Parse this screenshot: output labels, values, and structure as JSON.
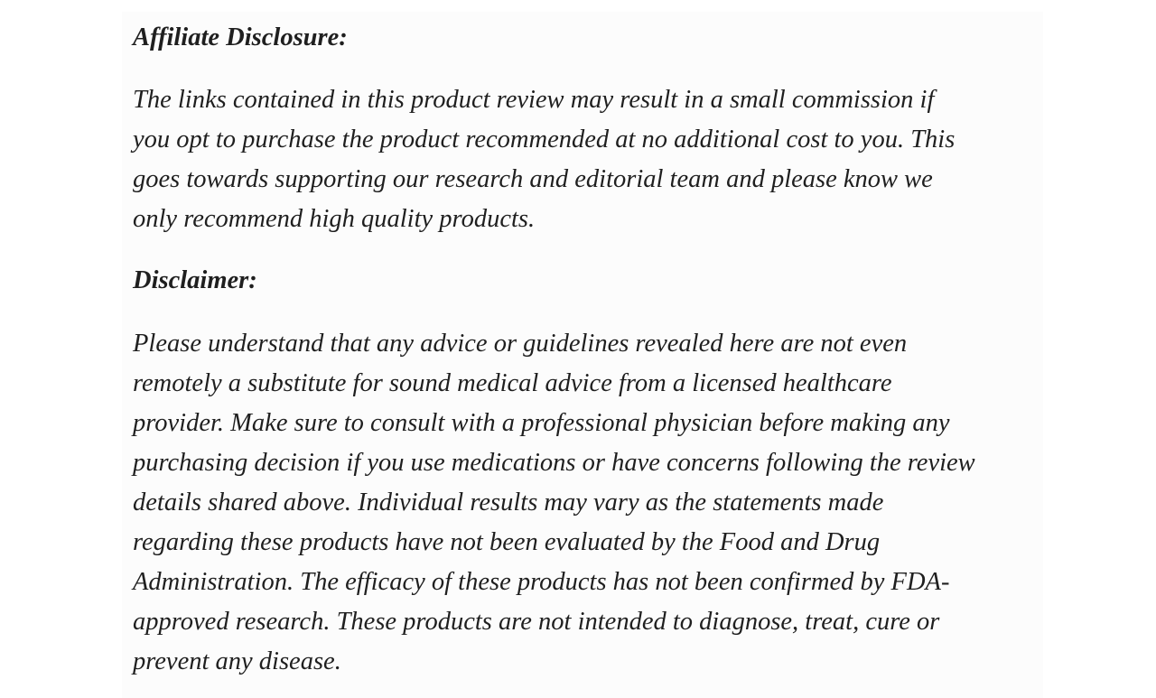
{
  "sections": [
    {
      "heading": "Affiliate Disclosure:",
      "lines": [
        "The links contained in this product review may result in a small commission if",
        "you opt to purchase the product recommended at no additional cost to you. This",
        "goes towards supporting our research and editorial team and please know we",
        "only recommend high quality products."
      ]
    },
    {
      "heading": "Disclaimer:",
      "lines": [
        "Please understand that any advice or guidelines revealed here are not even",
        "remotely a substitute for sound medical advice from a licensed healthcare",
        "provider. Make sure to consult with a professional physician before making any",
        "purchasing decision if you use medications or have concerns following the review",
        "details shared above. Individual results may vary as the statements made",
        "regarding these products have not been evaluated by the Food and Drug",
        "Administration. The efficacy of these products has not been confirmed by FDA-",
        "approved research. These products are not intended to diagnose, treat, cure or",
        "prevent any disease."
      ]
    }
  ]
}
